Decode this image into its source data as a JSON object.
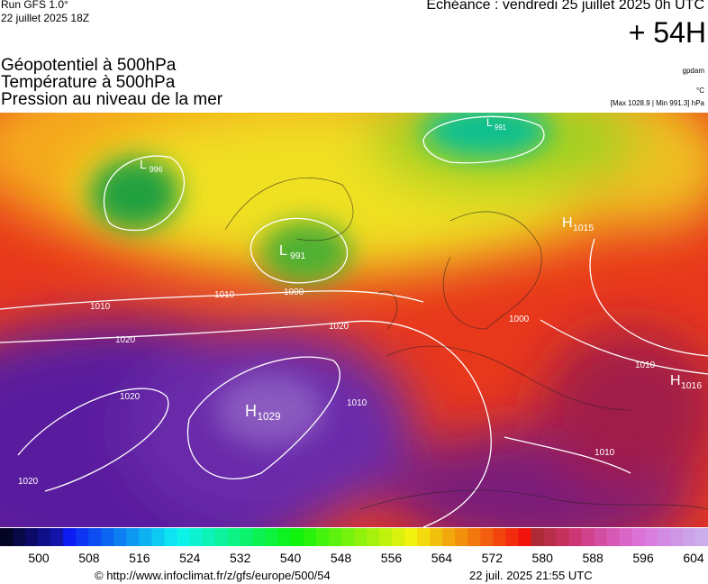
{
  "header": {
    "run": "Run GFS 1.0°",
    "run_date": "22 juillet 2025 18Z",
    "valid": "Echéance : vendredi 25 juillet 2025 0h UTC",
    "lead": "+ 54H"
  },
  "fields": [
    "Géopotentiel à 500hPa",
    "Température à 500hPa",
    "Pression au niveau de la mer"
  ],
  "units": {
    "geopotential": "gpdam",
    "temperature": "°C",
    "pressure": "[Max 1028.9 | Min 991.3] hPa"
  },
  "map_labels": [
    {
      "text": "H",
      "sub": "1029"
    },
    {
      "text": "L",
      "sub": "991"
    },
    {
      "text": "L",
      "sub": "996"
    },
    {
      "text": "H",
      "sub": "1015"
    },
    {
      "text": "H",
      "sub": "1016"
    },
    {
      "text": "L",
      "sub": "991"
    }
  ],
  "isobar_labels": [
    "1010",
    "1020",
    "1010",
    "1000",
    "1020",
    "1020",
    "1020",
    "1010",
    "1010",
    "1000",
    "1010"
  ],
  "colorbar": {
    "ticks": [
      500,
      508,
      516,
      524,
      532,
      540,
      548,
      556,
      564,
      572,
      580,
      588,
      596,
      604
    ]
  },
  "footer": {
    "url": "© http://www.infoclimat.fr/z/gfs/europe/500/54",
    "timestamp": "22 juil. 2025 21:55 UTC"
  }
}
